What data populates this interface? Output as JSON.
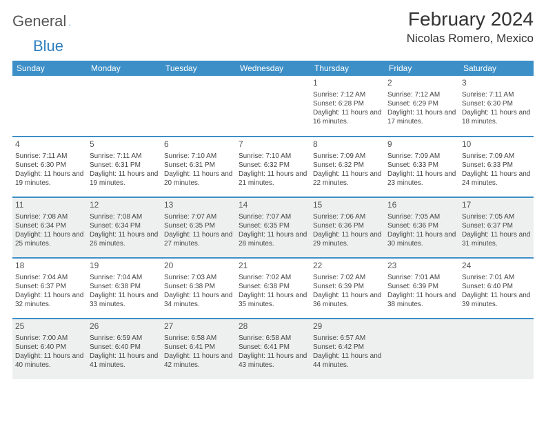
{
  "logo": {
    "part1": "General",
    "part2": "Blue"
  },
  "title": "February 2024",
  "location": "Nicolas Romero, Mexico",
  "colors": {
    "header_bg": "#3d8fc7",
    "header_text": "#ffffff",
    "alt_row_bg": "#eef0f0",
    "text": "#333333",
    "logo_blue": "#2f7fbf"
  },
  "day_headers": [
    "Sunday",
    "Monday",
    "Tuesday",
    "Wednesday",
    "Thursday",
    "Friday",
    "Saturday"
  ],
  "weeks": [
    [
      null,
      null,
      null,
      null,
      {
        "n": "1",
        "sr": "Sunrise: 7:12 AM",
        "ss": "Sunset: 6:28 PM",
        "dl": "Daylight: 11 hours and 16 minutes."
      },
      {
        "n": "2",
        "sr": "Sunrise: 7:12 AM",
        "ss": "Sunset: 6:29 PM",
        "dl": "Daylight: 11 hours and 17 minutes."
      },
      {
        "n": "3",
        "sr": "Sunrise: 7:11 AM",
        "ss": "Sunset: 6:30 PM",
        "dl": "Daylight: 11 hours and 18 minutes."
      }
    ],
    [
      {
        "n": "4",
        "sr": "Sunrise: 7:11 AM",
        "ss": "Sunset: 6:30 PM",
        "dl": "Daylight: 11 hours and 19 minutes."
      },
      {
        "n": "5",
        "sr": "Sunrise: 7:11 AM",
        "ss": "Sunset: 6:31 PM",
        "dl": "Daylight: 11 hours and 19 minutes."
      },
      {
        "n": "6",
        "sr": "Sunrise: 7:10 AM",
        "ss": "Sunset: 6:31 PM",
        "dl": "Daylight: 11 hours and 20 minutes."
      },
      {
        "n": "7",
        "sr": "Sunrise: 7:10 AM",
        "ss": "Sunset: 6:32 PM",
        "dl": "Daylight: 11 hours and 21 minutes."
      },
      {
        "n": "8",
        "sr": "Sunrise: 7:09 AM",
        "ss": "Sunset: 6:32 PM",
        "dl": "Daylight: 11 hours and 22 minutes."
      },
      {
        "n": "9",
        "sr": "Sunrise: 7:09 AM",
        "ss": "Sunset: 6:33 PM",
        "dl": "Daylight: 11 hours and 23 minutes."
      },
      {
        "n": "10",
        "sr": "Sunrise: 7:09 AM",
        "ss": "Sunset: 6:33 PM",
        "dl": "Daylight: 11 hours and 24 minutes."
      }
    ],
    [
      {
        "n": "11",
        "sr": "Sunrise: 7:08 AM",
        "ss": "Sunset: 6:34 PM",
        "dl": "Daylight: 11 hours and 25 minutes."
      },
      {
        "n": "12",
        "sr": "Sunrise: 7:08 AM",
        "ss": "Sunset: 6:34 PM",
        "dl": "Daylight: 11 hours and 26 minutes."
      },
      {
        "n": "13",
        "sr": "Sunrise: 7:07 AM",
        "ss": "Sunset: 6:35 PM",
        "dl": "Daylight: 11 hours and 27 minutes."
      },
      {
        "n": "14",
        "sr": "Sunrise: 7:07 AM",
        "ss": "Sunset: 6:35 PM",
        "dl": "Daylight: 11 hours and 28 minutes."
      },
      {
        "n": "15",
        "sr": "Sunrise: 7:06 AM",
        "ss": "Sunset: 6:36 PM",
        "dl": "Daylight: 11 hours and 29 minutes."
      },
      {
        "n": "16",
        "sr": "Sunrise: 7:05 AM",
        "ss": "Sunset: 6:36 PM",
        "dl": "Daylight: 11 hours and 30 minutes."
      },
      {
        "n": "17",
        "sr": "Sunrise: 7:05 AM",
        "ss": "Sunset: 6:37 PM",
        "dl": "Daylight: 11 hours and 31 minutes."
      }
    ],
    [
      {
        "n": "18",
        "sr": "Sunrise: 7:04 AM",
        "ss": "Sunset: 6:37 PM",
        "dl": "Daylight: 11 hours and 32 minutes."
      },
      {
        "n": "19",
        "sr": "Sunrise: 7:04 AM",
        "ss": "Sunset: 6:38 PM",
        "dl": "Daylight: 11 hours and 33 minutes."
      },
      {
        "n": "20",
        "sr": "Sunrise: 7:03 AM",
        "ss": "Sunset: 6:38 PM",
        "dl": "Daylight: 11 hours and 34 minutes."
      },
      {
        "n": "21",
        "sr": "Sunrise: 7:02 AM",
        "ss": "Sunset: 6:38 PM",
        "dl": "Daylight: 11 hours and 35 minutes."
      },
      {
        "n": "22",
        "sr": "Sunrise: 7:02 AM",
        "ss": "Sunset: 6:39 PM",
        "dl": "Daylight: 11 hours and 36 minutes."
      },
      {
        "n": "23",
        "sr": "Sunrise: 7:01 AM",
        "ss": "Sunset: 6:39 PM",
        "dl": "Daylight: 11 hours and 38 minutes."
      },
      {
        "n": "24",
        "sr": "Sunrise: 7:01 AM",
        "ss": "Sunset: 6:40 PM",
        "dl": "Daylight: 11 hours and 39 minutes."
      }
    ],
    [
      {
        "n": "25",
        "sr": "Sunrise: 7:00 AM",
        "ss": "Sunset: 6:40 PM",
        "dl": "Daylight: 11 hours and 40 minutes."
      },
      {
        "n": "26",
        "sr": "Sunrise: 6:59 AM",
        "ss": "Sunset: 6:40 PM",
        "dl": "Daylight: 11 hours and 41 minutes."
      },
      {
        "n": "27",
        "sr": "Sunrise: 6:58 AM",
        "ss": "Sunset: 6:41 PM",
        "dl": "Daylight: 11 hours and 42 minutes."
      },
      {
        "n": "28",
        "sr": "Sunrise: 6:58 AM",
        "ss": "Sunset: 6:41 PM",
        "dl": "Daylight: 11 hours and 43 minutes."
      },
      {
        "n": "29",
        "sr": "Sunrise: 6:57 AM",
        "ss": "Sunset: 6:42 PM",
        "dl": "Daylight: 11 hours and 44 minutes."
      },
      null,
      null
    ]
  ],
  "alt_weeks": [
    false,
    false,
    true,
    false,
    true
  ]
}
